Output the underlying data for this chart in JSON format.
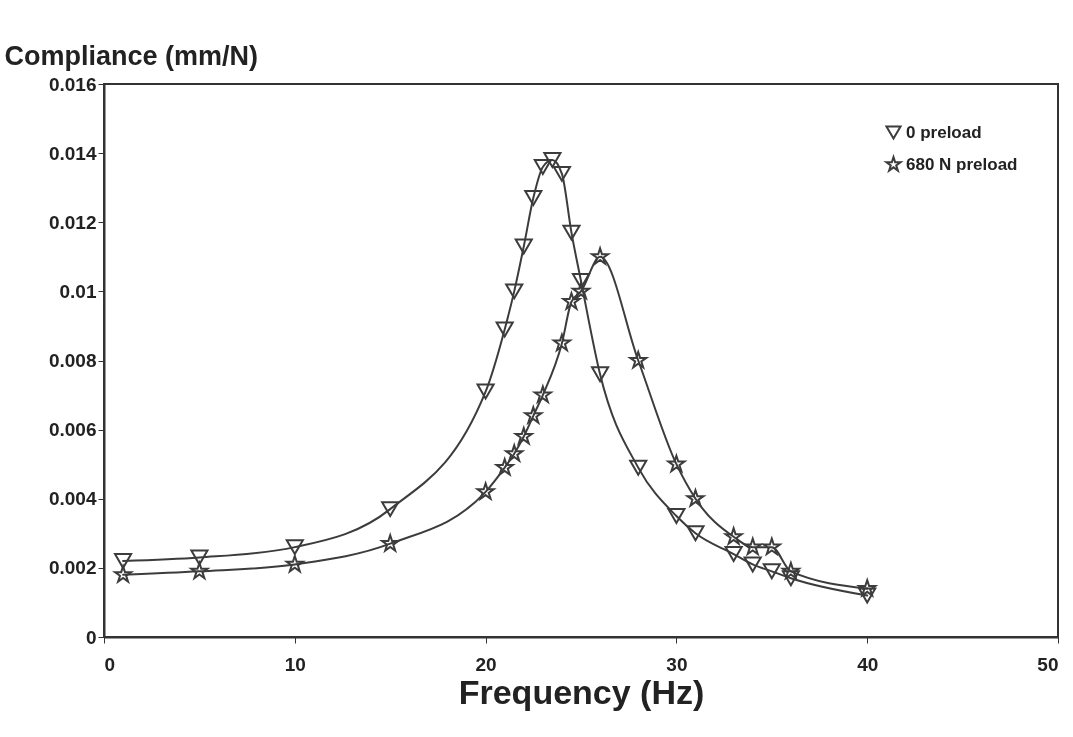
{
  "chart_data": {
    "type": "line",
    "xlabel": "Frequency (Hz)",
    "ylabel": "Compliance (mm/N)",
    "xlim": [
      0,
      50
    ],
    "xticks": [
      0,
      10,
      20,
      30,
      40,
      50
    ],
    "ylim": [
      0,
      0.016
    ],
    "yticks": [
      0,
      0.002,
      0.004,
      0.006,
      0.008,
      0.01,
      0.012,
      0.014,
      0.016
    ],
    "grid": false,
    "legend": "top right",
    "line_style": "solid",
    "series": [
      {
        "name": "0 preload",
        "color": "#3c3c3c",
        "marker": "triangle",
        "x": [
          1,
          5,
          10,
          15,
          20,
          21,
          21.5,
          22,
          22.5,
          23,
          23.5,
          24,
          24.5,
          25,
          26,
          28,
          30,
          31,
          33,
          34,
          35,
          36,
          40
        ],
        "values": [
          0.0022,
          0.0023,
          0.0026,
          0.0037,
          0.0071,
          0.0089,
          0.01,
          0.0113,
          0.0127,
          0.0136,
          0.0138,
          0.0134,
          0.0117,
          0.0103,
          0.0076,
          0.0049,
          0.0035,
          0.003,
          0.0024,
          0.0021,
          0.0019,
          0.0017,
          0.0012
        ]
      },
      {
        "name": "680 N preload",
        "color": "#3c3c3c",
        "marker": "star",
        "x": [
          1,
          5,
          10,
          15,
          20,
          21,
          21.5,
          22,
          22.5,
          23,
          24,
          24.5,
          25,
          26,
          28,
          30,
          31,
          33,
          34,
          35,
          36,
          40
        ],
        "values": [
          0.0018,
          0.0019,
          0.0021,
          0.0027,
          0.0042,
          0.0049,
          0.0053,
          0.0058,
          0.0064,
          0.007,
          0.0085,
          0.0097,
          0.01,
          0.011,
          0.008,
          0.005,
          0.004,
          0.0029,
          0.0026,
          0.0026,
          0.0019,
          0.0014
        ]
      }
    ]
  }
}
